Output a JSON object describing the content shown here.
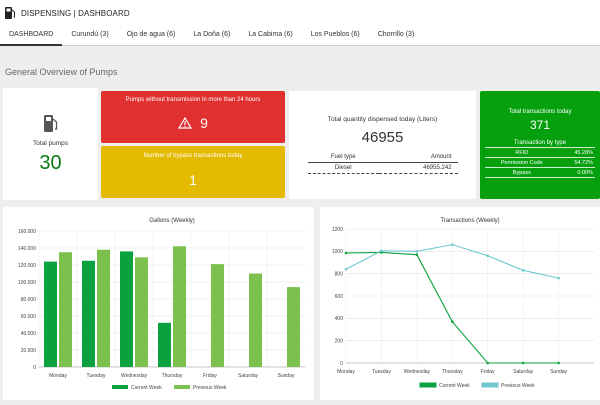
{
  "header": {
    "title": "DISPENSING | DASHBOARD"
  },
  "tabs": [
    "DASHBOARD",
    "Curundú (3)",
    "Ojo de agua (6)",
    "La Doña (6)",
    "La Cabima (6)",
    "Los Pueblos (6)",
    "Chorrillo (3)"
  ],
  "section_title": "General Overview of Pumps",
  "total_pumps": {
    "label": "Total pumps",
    "value": "30"
  },
  "no_transmission": {
    "label": "Pumps without transmission in more than 24 hours",
    "value": "9"
  },
  "bypass_today": {
    "label": "Number of bypass transactions today",
    "value": "1"
  },
  "dispensed": {
    "label": "Total quantity dispensed today (Liters)",
    "value": "46955",
    "col_fuel": "Fuel type",
    "col_amount": "Amount",
    "fuel": "Diesel",
    "amount": "46955.242"
  },
  "transactions_today": {
    "label": "Total transactions today",
    "value": "371",
    "by_type_label": "Transaction by type",
    "rows": [
      {
        "type": "RFID",
        "pct": "45.28%"
      },
      {
        "type": "Permission Code",
        "pct": "54.72%"
      },
      {
        "type": "Bypass",
        "pct": "0.00%"
      }
    ]
  },
  "colors": {
    "red": "#e03030",
    "yellow": "#e4ba00",
    "green": "#06a00f",
    "current": "#0aa13f",
    "previous": "#7cc04e",
    "cyan": "#6fc8d0"
  },
  "chart_data": [
    {
      "type": "bar",
      "title": "Gallons (Weekly)",
      "categories": [
        "Monday",
        "Tuesday",
        "Wednesday",
        "Thursday",
        "Friday",
        "Saturday",
        "Sunday"
      ],
      "ylim": [
        0,
        160000
      ],
      "yticks": [
        "0",
        "20.000",
        "40.000",
        "60.000",
        "80.000",
        "100.000",
        "120.000",
        "140.000",
        "160.000"
      ],
      "series": [
        {
          "name": "Current Week",
          "values": [
            124000,
            125000,
            136000,
            52000,
            null,
            null,
            null
          ]
        },
        {
          "name": "Previous Week",
          "values": [
            135000,
            138000,
            129000,
            142000,
            121000,
            110000,
            94000
          ]
        }
      ],
      "grid": true,
      "legend": "bottom"
    },
    {
      "type": "line",
      "title": "Transactions (Weekly)",
      "categories": [
        "Monday",
        "Tuesday",
        "Wednesday",
        "Thursday",
        "Friday",
        "Saturday",
        "Sunday"
      ],
      "ylim": [
        0,
        1200
      ],
      "yticks": [
        "0",
        "200",
        "400",
        "600",
        "800",
        "1000",
        "1200"
      ],
      "series": [
        {
          "name": "Current Week",
          "values": [
            985,
            990,
            970,
            370,
            0,
            0,
            0
          ]
        },
        {
          "name": "Previous Week",
          "values": [
            840,
            1005,
            1000,
            1060,
            960,
            830,
            760
          ]
        }
      ],
      "grid": true,
      "legend": "bottom"
    }
  ]
}
